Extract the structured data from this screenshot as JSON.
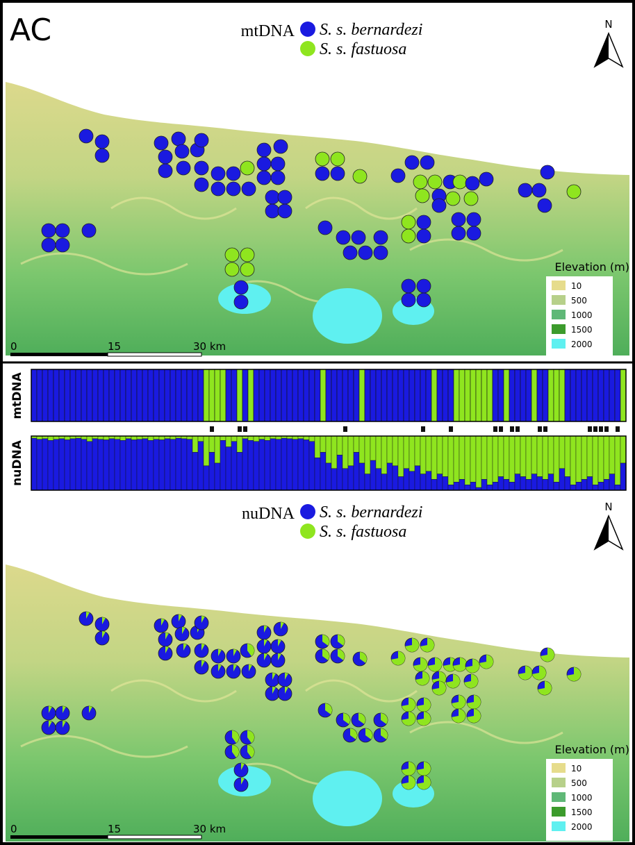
{
  "panel_label": "AC",
  "colors": [
    "#1a1ae0",
    "#8fe51f"
  ],
  "top_map": {
    "legend_title": "mtDNA",
    "species": [
      "S. s. bernardezi",
      "S. s. fastuosa"
    ],
    "north": "N",
    "elevation_title": "Elevation (m)",
    "elevation_levels": [
      "10",
      "500",
      "1000",
      "1500",
      "2000"
    ],
    "scale_labels": [
      "0",
      "15",
      "30 km"
    ]
  },
  "bar_plot": {
    "mt_label": "mtDNA",
    "nu_label": "nuDNA",
    "mt_values": [
      0,
      0,
      0,
      0,
      0,
      0,
      0,
      0,
      0,
      0,
      0,
      0,
      0,
      0,
      0,
      0,
      0,
      0,
      0,
      0,
      0,
      0,
      0,
      0,
      0,
      0,
      0,
      0,
      0,
      0,
      0,
      1,
      1,
      1,
      1,
      0,
      0,
      1,
      0,
      1,
      0,
      0,
      0,
      0,
      0,
      0,
      0,
      0,
      0,
      0,
      0,
      0,
      1,
      0,
      0,
      0,
      0,
      0,
      0,
      1,
      0,
      0,
      0,
      0,
      0,
      0,
      0,
      0,
      0,
      0,
      0,
      0,
      1,
      0,
      0,
      0,
      1,
      1,
      1,
      1,
      1,
      1,
      1,
      0,
      0,
      1,
      0,
      0,
      0,
      0,
      1,
      0,
      0,
      1,
      1,
      1,
      0,
      0,
      0,
      0,
      0,
      0,
      0,
      0,
      0,
      0,
      1
    ],
    "markers": [
      32,
      37,
      38,
      56,
      70,
      75,
      83,
      84,
      86,
      87,
      91,
      92,
      100,
      101,
      102,
      103,
      105
    ],
    "nu_values": [
      0.04,
      0.06,
      0.05,
      0.08,
      0.06,
      0.05,
      0.07,
      0.05,
      0.04,
      0.06,
      0.1,
      0.05,
      0.06,
      0.07,
      0.05,
      0.06,
      0.08,
      0.05,
      0.07,
      0.06,
      0.05,
      0.08,
      0.06,
      0.07,
      0.05,
      0.06,
      0.04,
      0.05,
      0.06,
      0.3,
      0.1,
      0.55,
      0.3,
      0.5,
      0.08,
      0.2,
      0.1,
      0.3,
      0.05,
      0.08,
      0.1,
      0.06,
      0.08,
      0.05,
      0.06,
      0.04,
      0.05,
      0.06,
      0.05,
      0.07,
      0.1,
      0.4,
      0.3,
      0.5,
      0.6,
      0.35,
      0.6,
      0.55,
      0.3,
      0.5,
      0.7,
      0.45,
      0.6,
      0.7,
      0.5,
      0.55,
      0.75,
      0.6,
      0.65,
      0.55,
      0.7,
      0.65,
      0.8,
      0.7,
      0.75,
      0.9,
      0.85,
      0.8,
      0.9,
      0.85,
      0.95,
      0.8,
      0.9,
      0.85,
      0.75,
      0.8,
      0.85,
      0.7,
      0.75,
      0.8,
      0.7,
      0.75,
      0.8,
      0.7,
      0.85,
      0.6,
      0.75,
      0.9,
      0.85,
      0.8,
      0.75,
      0.9,
      0.85,
      0.8,
      0.7,
      0.9,
      0.5
    ]
  },
  "bottom_map": {
    "legend_title": "nuDNA",
    "species": [
      "S. s. bernardezi",
      "S. s. fastuosa"
    ],
    "north": "N",
    "elevation_title": "Elevation (m)",
    "elevation_levels": [
      "10",
      "500",
      "1000",
      "1500",
      "2000"
    ],
    "scale_labels": [
      "0",
      "15",
      "30 km"
    ]
  }
}
